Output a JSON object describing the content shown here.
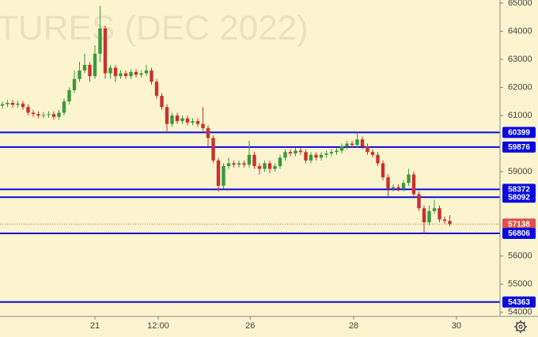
{
  "chart_data": {
    "type": "candlestick",
    "watermark": "TURES (DEC 2022)",
    "up_color": "#3a9a3a",
    "down_color": "#c8322d",
    "level_color": "#0a0ae0",
    "last_color": "#e0504a",
    "ylim": [
      53850,
      65110
    ],
    "yticks": [
      65000,
      64000,
      63000,
      62000,
      61000,
      59000,
      56000,
      55000,
      54000
    ],
    "xlim": [
      -0.46,
      96.77
    ],
    "xticks": [
      {
        "value": 18.0,
        "label": "21"
      },
      {
        "value": 30.3,
        "label": "12:00"
      },
      {
        "value": 48.2,
        "label": "26"
      },
      {
        "value": 68.3,
        "label": "28"
      },
      {
        "value": 88.3,
        "label": "30"
      }
    ],
    "levels": [
      60399,
      59876,
      58372,
      58092,
      56806,
      54363
    ],
    "series": [
      {
        "open": [
          61350,
          61400,
          61450,
          61380,
          61420,
          61300,
          61100,
          61050,
          61000,
          61020,
          61050,
          60950,
          61100,
          61500,
          61900,
          62300,
          62600,
          62800,
          62400,
          63200,
          64100,
          62500,
          62700,
          62400,
          62500,
          62400,
          62550,
          62450,
          62500,
          62600,
          62200,
          61700,
          61300,
          60700,
          61000,
          60800,
          60900,
          60750,
          60800,
          60700,
          60550,
          60200,
          59400,
          58500,
          59200,
          59300,
          59250,
          59300,
          59250,
          59600,
          59200,
          59100,
          59300,
          59100,
          59200,
          59500,
          59700,
          59650,
          59750,
          59700,
          59400,
          59600,
          59500,
          59600,
          59650,
          59700,
          59750,
          59900,
          60000,
          59950,
          60150,
          59900,
          59700,
          59600,
          59300,
          58800,
          58400,
          58450,
          58400,
          58600,
          58900,
          58200,
          57700,
          57200,
          57600,
          57700,
          57300,
          57250
        ],
        "high": [
          61500,
          61550,
          61550,
          61520,
          61520,
          61400,
          61200,
          61150,
          61120,
          61150,
          61150,
          61200,
          61600,
          62000,
          62600,
          62900,
          63200,
          62900,
          63500,
          64900,
          64200,
          62800,
          62800,
          62600,
          62600,
          62650,
          62650,
          62600,
          62800,
          62700,
          62300,
          61800,
          61400,
          61100,
          61100,
          61000,
          61000,
          60900,
          60900,
          61300,
          60650,
          60300,
          59500,
          59300,
          59500,
          59400,
          59400,
          59400,
          60100,
          59700,
          59300,
          59400,
          59400,
          59300,
          59600,
          59800,
          59800,
          59850,
          59850,
          59800,
          59700,
          59700,
          59700,
          59750,
          59800,
          59850,
          60000,
          60100,
          60100,
          60400,
          60250,
          60000,
          59800,
          59700,
          59400,
          58900,
          58550,
          58550,
          58700,
          59100,
          59000,
          58300,
          57800,
          57800,
          58000,
          57800,
          57400,
          57450
        ],
        "low": [
          61250,
          61300,
          61280,
          61280,
          61200,
          61000,
          60950,
          60900,
          60900,
          60920,
          60850,
          60850,
          61000,
          61400,
          61800,
          62200,
          62500,
          62200,
          62300,
          62900,
          62300,
          62300,
          62200,
          62300,
          62300,
          62300,
          62350,
          62350,
          62400,
          62100,
          61600,
          61200,
          60400,
          60600,
          60700,
          60700,
          60650,
          60650,
          60600,
          60400,
          59900,
          59300,
          58300,
          58400,
          59100,
          59150,
          59150,
          59150,
          59150,
          59100,
          58900,
          59000,
          58950,
          59000,
          59100,
          59400,
          59550,
          59550,
          59600,
          59300,
          59300,
          59400,
          59400,
          59500,
          59550,
          59600,
          59650,
          59800,
          59850,
          59850,
          59800,
          59600,
          59500,
          59200,
          58700,
          58100,
          58300,
          58300,
          58300,
          58500,
          58100,
          57600,
          56800,
          57100,
          57500,
          57200,
          57150,
          57050
        ],
        "close": [
          61400,
          61450,
          61380,
          61420,
          61300,
          61100,
          61050,
          61000,
          61020,
          61050,
          60950,
          61100,
          61500,
          61900,
          62300,
          62600,
          62800,
          62400,
          63200,
          64100,
          62500,
          62700,
          62400,
          62500,
          62400,
          62550,
          62450,
          62500,
          62600,
          62200,
          61700,
          61300,
          60700,
          61000,
          60800,
          60900,
          60750,
          60800,
          60700,
          60550,
          60200,
          59400,
          58500,
          59200,
          59300,
          59250,
          59300,
          59250,
          59600,
          59200,
          59100,
          59300,
          59100,
          59200,
          59500,
          59700,
          59650,
          59750,
          59700,
          59400,
          59600,
          59500,
          59600,
          59650,
          59700,
          59750,
          59900,
          60000,
          59950,
          60150,
          59900,
          59700,
          59600,
          59300,
          58800,
          58400,
          58450,
          58400,
          58600,
          58900,
          58200,
          57700,
          57200,
          57600,
          57700,
          57300,
          57250,
          57138
        ]
      }
    ]
  }
}
